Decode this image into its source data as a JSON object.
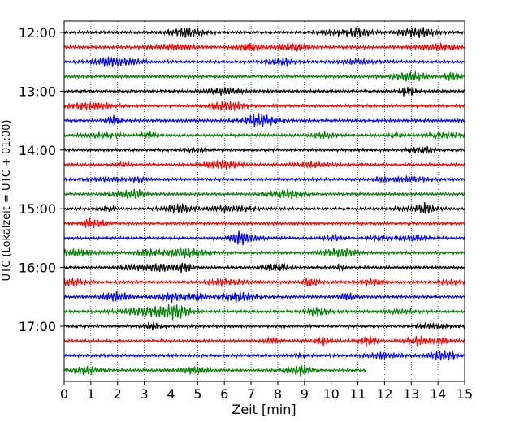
{
  "chart_data": {
    "type": "line",
    "subtype": "helicorder",
    "xlabel": "Zeit  [min]",
    "ylabel": "UTC (Lokalzeit = UTC + 01:00)",
    "xlim": [
      0,
      15
    ],
    "x_ticks": [
      "0",
      "1",
      "2",
      "3",
      "4",
      "5",
      "6",
      "7",
      "8",
      "9",
      "10",
      "11",
      "12",
      "13",
      "14",
      "15"
    ],
    "grid": "vertical dotted",
    "y_tick_labels": [
      {
        "label": "12:00",
        "row": 0
      },
      {
        "label": "13:00",
        "row": 4
      },
      {
        "label": "14:00",
        "row": 8
      },
      {
        "label": "15:00",
        "row": 12
      },
      {
        "label": "16:00",
        "row": 16
      },
      {
        "label": "17:00",
        "row": 20
      }
    ],
    "row_interval_minutes": 15,
    "row_count": 24,
    "last_row_end_minute": 11.3,
    "trace_colors": [
      "#000000",
      "#ff0000",
      "#0000ff",
      "#008000"
    ]
  }
}
